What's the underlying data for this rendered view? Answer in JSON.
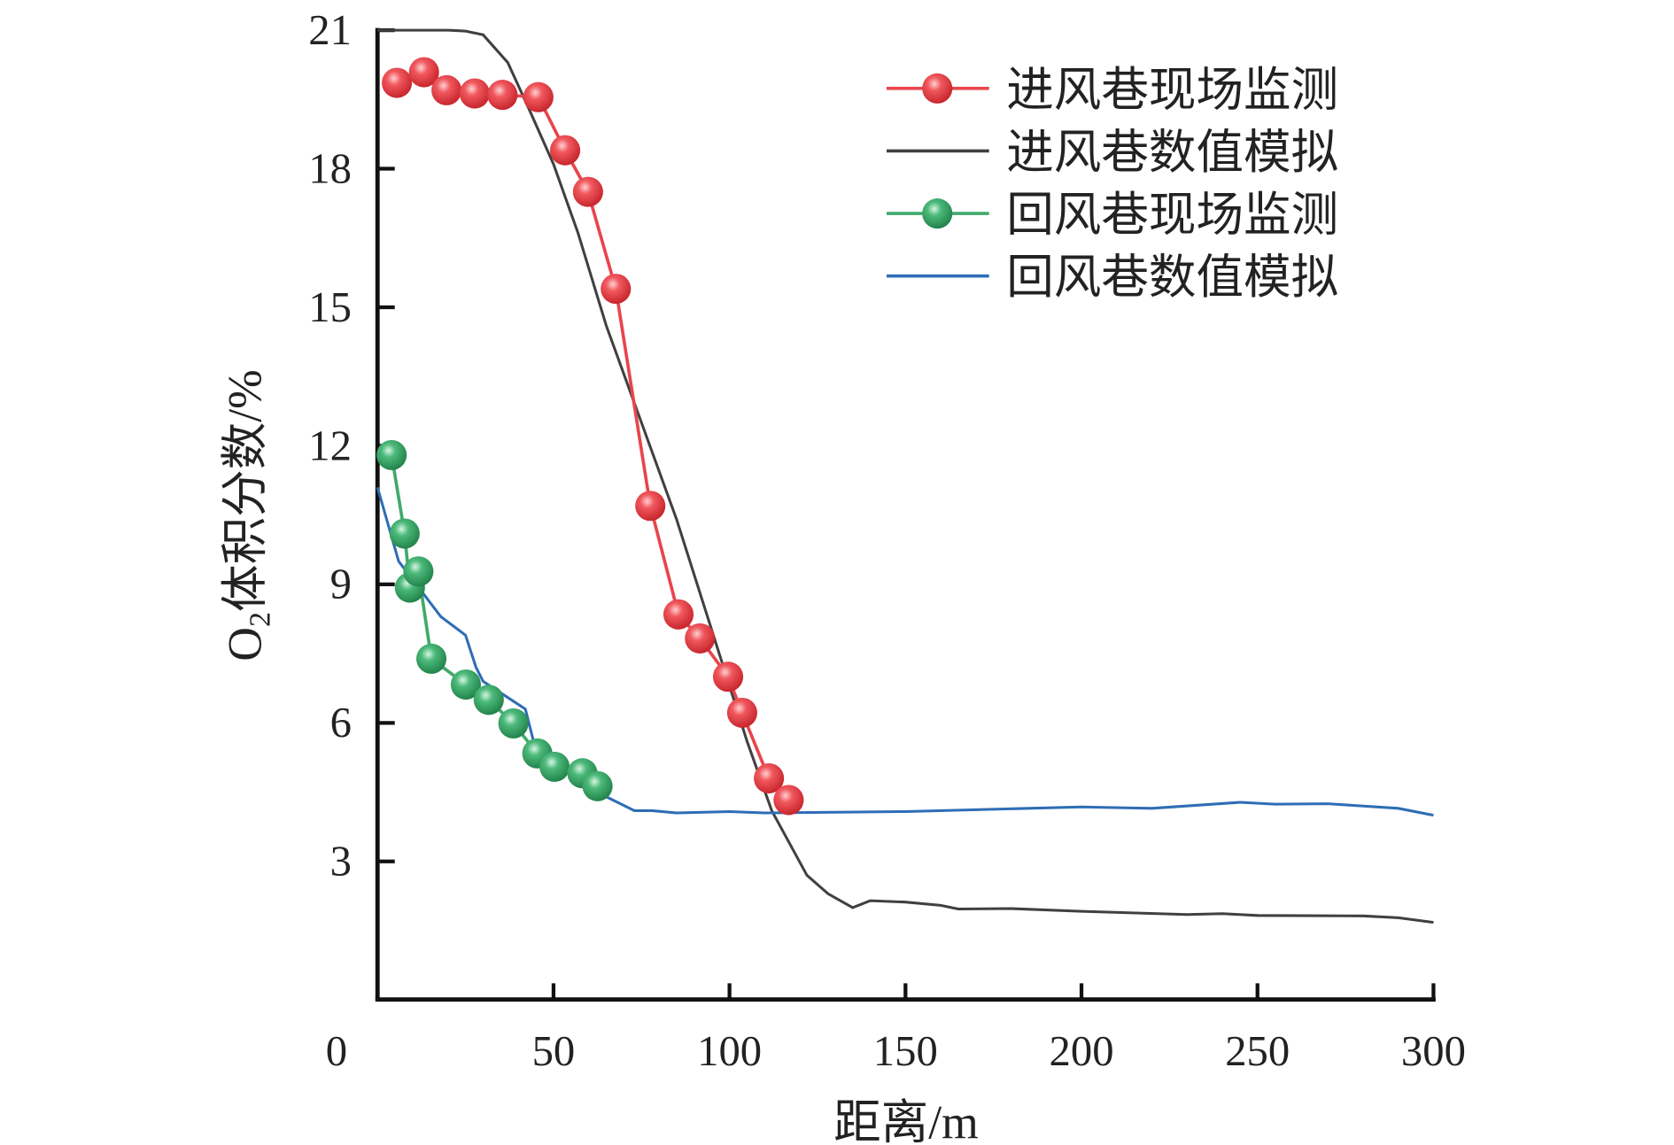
{
  "chart_data": {
    "type": "line",
    "xlabel": "距离/m",
    "ylabel_main": "O",
    "ylabel_sub": "2",
    "ylabel_rest": "体积分数/%",
    "xlim": [
      0,
      300
    ],
    "ylim": [
      0,
      21
    ],
    "xticks": [
      50,
      100,
      150,
      200,
      250,
      300
    ],
    "yticks": [
      3,
      6,
      9,
      12,
      15,
      18,
      21
    ],
    "origin_label": "0",
    "grid": false,
    "legend_position": "top-right",
    "series": [
      {
        "name": "进风巷现场监测",
        "color": "#e8454c",
        "marker": true,
        "x": [
          5.5,
          13.2,
          19.6,
          27.6,
          35.5,
          45.7,
          53.3,
          59.8,
          67.7,
          77.5,
          85.5,
          91.6,
          99.6,
          103.6,
          111.2,
          116.8
        ],
        "y": [
          19.86,
          20.09,
          19.7,
          19.63,
          19.6,
          19.55,
          18.4,
          17.5,
          15.4,
          10.7,
          8.35,
          7.83,
          7.0,
          6.22,
          4.8,
          4.33
        ]
      },
      {
        "name": "进风巷数值模拟",
        "color": "#404040",
        "marker": false,
        "x": [
          0,
          20,
          25,
          30,
          37,
          43,
          50,
          57,
          65,
          75,
          85,
          95,
          105,
          112,
          117,
          122,
          128,
          135,
          140,
          150,
          160,
          165,
          180,
          200,
          230,
          240,
          250,
          280,
          290,
          300
        ],
        "y": [
          21,
          21,
          20.98,
          20.9,
          20.3,
          19.3,
          18.1,
          16.6,
          14.6,
          12.5,
          10.4,
          8.0,
          5.6,
          4.1,
          3.4,
          2.7,
          2.3,
          2.0,
          2.15,
          2.12,
          2.05,
          1.97,
          1.98,
          1.92,
          1.85,
          1.87,
          1.83,
          1.82,
          1.78,
          1.68
        ]
      },
      {
        "name": "回风巷现场监测",
        "color": "#3faa6a",
        "marker": true,
        "x": [
          4,
          7.7,
          9.2,
          11.6,
          15.3,
          25.1,
          31.6,
          38.6,
          45.4,
          50.3,
          58.2,
          62.5
        ],
        "y": [
          11.8,
          10.1,
          8.93,
          9.28,
          7.39,
          6.83,
          6.5,
          5.99,
          5.34,
          5.05,
          4.91,
          4.63
        ]
      },
      {
        "name": "回风巷数值模拟",
        "color": "#2f6db5",
        "marker": false,
        "x": [
          0,
          6,
          12,
          18,
          25,
          28,
          30,
          35,
          42,
          45,
          55,
          65,
          73,
          78,
          85,
          100,
          110,
          150,
          200,
          220,
          245,
          255,
          270,
          290,
          300
        ],
        "y": [
          11.1,
          9.5,
          8.9,
          8.3,
          7.9,
          7.2,
          6.9,
          6.65,
          6.3,
          5.4,
          4.9,
          4.4,
          4.1,
          4.1,
          4.05,
          4.08,
          4.05,
          4.08,
          4.18,
          4.15,
          4.28,
          4.24,
          4.25,
          4.15,
          4.0
        ]
      }
    ]
  }
}
